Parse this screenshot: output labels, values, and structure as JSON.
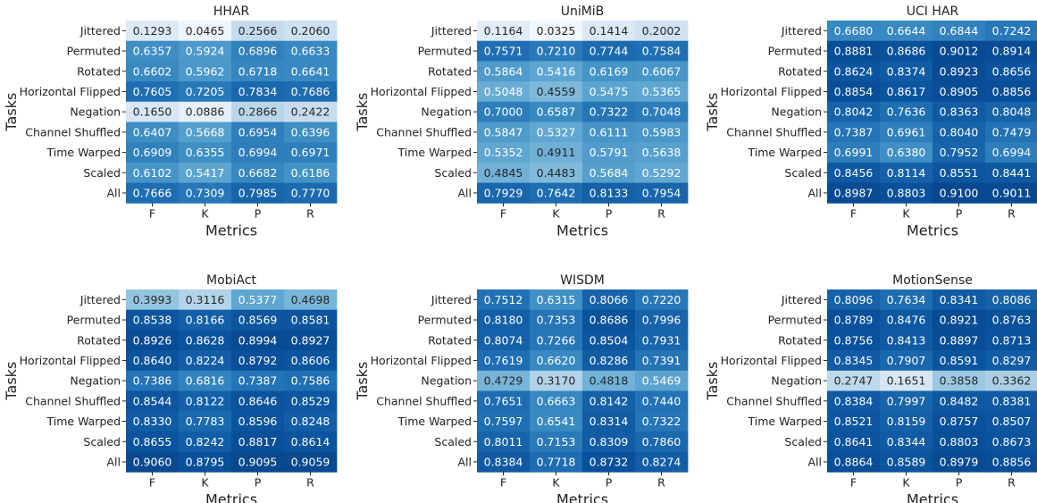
{
  "figure": {
    "colormap": "Blues",
    "color_scale_range": [
      0.0,
      1.0
    ],
    "text_color_dark": "#262626",
    "text_color_light": "#ffffff"
  },
  "chart_data": [
    {
      "type": "heatmap",
      "title": "HHAR",
      "xlabel": "Metrics",
      "ylabel": "Tasks",
      "x": [
        "F",
        "K",
        "P",
        "R"
      ],
      "y": [
        "Jittered",
        "Permuted",
        "Rotated",
        "Horizontal Flipped",
        "Negation",
        "Channel Shuffled",
        "Time Warped",
        "Scaled",
        "All"
      ],
      "values": [
        [
          0.1293,
          0.0465,
          0.2566,
          0.206
        ],
        [
          0.6357,
          0.5924,
          0.6896,
          0.6633
        ],
        [
          0.6602,
          0.5962,
          0.6718,
          0.6641
        ],
        [
          0.7605,
          0.7205,
          0.7834,
          0.7686
        ],
        [
          0.165,
          0.0886,
          0.2866,
          0.2422
        ],
        [
          0.6407,
          0.5668,
          0.6954,
          0.6396
        ],
        [
          0.6909,
          0.6355,
          0.6994,
          0.6971
        ],
        [
          0.6102,
          0.5417,
          0.6682,
          0.6186
        ],
        [
          0.7666,
          0.7309,
          0.7985,
          0.777
        ]
      ]
    },
    {
      "type": "heatmap",
      "title": "UniMiB",
      "xlabel": "Metrics",
      "ylabel": "Tasks",
      "x": [
        "F",
        "K",
        "P",
        "R"
      ],
      "y": [
        "Jittered",
        "Permuted",
        "Rotated",
        "Horizontal Flipped",
        "Negation",
        "Channel Shuffled",
        "Time Warped",
        "Scaled",
        "All"
      ],
      "values": [
        [
          0.1164,
          0.0325,
          0.1414,
          0.2002
        ],
        [
          0.7571,
          0.721,
          0.7744,
          0.7584
        ],
        [
          0.5864,
          0.5416,
          0.6169,
          0.6067
        ],
        [
          0.5048,
          0.4559,
          0.5475,
          0.5365
        ],
        [
          0.7,
          0.6587,
          0.7322,
          0.7048
        ],
        [
          0.5847,
          0.5327,
          0.6111,
          0.5983
        ],
        [
          0.5352,
          0.4911,
          0.5791,
          0.5638
        ],
        [
          0.4845,
          0.4483,
          0.5684,
          0.5292
        ],
        [
          0.7929,
          0.7642,
          0.8133,
          0.7954
        ]
      ]
    },
    {
      "type": "heatmap",
      "title": "UCI HAR",
      "xlabel": "Metrics",
      "ylabel": "Tasks",
      "x": [
        "F",
        "K",
        "P",
        "R"
      ],
      "y": [
        "Jittered",
        "Permuted",
        "Rotated",
        "Horizontal Flipped",
        "Negation",
        "Channel Shuffled",
        "Time Warped",
        "Scaled",
        "All"
      ],
      "values": [
        [
          0.668,
          0.6644,
          0.6844,
          0.7242
        ],
        [
          0.8881,
          0.8686,
          0.9012,
          0.8914
        ],
        [
          0.8624,
          0.8374,
          0.8923,
          0.8656
        ],
        [
          0.8854,
          0.8617,
          0.8905,
          0.8856
        ],
        [
          0.8042,
          0.7636,
          0.8363,
          0.8048
        ],
        [
          0.7387,
          0.6961,
          0.804,
          0.7479
        ],
        [
          0.6991,
          0.638,
          0.7952,
          0.6994
        ],
        [
          0.8456,
          0.8114,
          0.8551,
          0.8441
        ],
        [
          0.8987,
          0.8803,
          0.91,
          0.9011
        ]
      ]
    },
    {
      "type": "heatmap",
      "title": "MobiAct",
      "xlabel": "Metrics",
      "ylabel": "Tasks",
      "x": [
        "F",
        "K",
        "P",
        "R"
      ],
      "y": [
        "Jittered",
        "Permuted",
        "Rotated",
        "Horizontal Flipped",
        "Negation",
        "Channel Shuffled",
        "Time Warped",
        "Scaled",
        "All"
      ],
      "values": [
        [
          0.3993,
          0.3116,
          0.5377,
          0.4698
        ],
        [
          0.8538,
          0.8166,
          0.8569,
          0.8581
        ],
        [
          0.8926,
          0.8628,
          0.8994,
          0.8927
        ],
        [
          0.864,
          0.8224,
          0.8792,
          0.8606
        ],
        [
          0.7386,
          0.6816,
          0.7387,
          0.7586
        ],
        [
          0.8544,
          0.8122,
          0.8646,
          0.8529
        ],
        [
          0.833,
          0.7783,
          0.8596,
          0.8248
        ],
        [
          0.8655,
          0.8242,
          0.8817,
          0.8614
        ],
        [
          0.906,
          0.8795,
          0.9095,
          0.9059
        ]
      ]
    },
    {
      "type": "heatmap",
      "title": "WISDM",
      "xlabel": "Metrics",
      "ylabel": "Tasks",
      "x": [
        "F",
        "K",
        "P",
        "R"
      ],
      "y": [
        "Jittered",
        "Permuted",
        "Rotated",
        "Horizontal Flipped",
        "Negation",
        "Channel Shuffled",
        "Time Warped",
        "Scaled",
        "All"
      ],
      "values": [
        [
          0.7512,
          0.6315,
          0.8066,
          0.722
        ],
        [
          0.818,
          0.7353,
          0.8686,
          0.7996
        ],
        [
          0.8074,
          0.7266,
          0.8504,
          0.7931
        ],
        [
          0.7619,
          0.662,
          0.8286,
          0.7391
        ],
        [
          0.4729,
          0.317,
          0.4818,
          0.5469
        ],
        [
          0.7651,
          0.6663,
          0.8142,
          0.744
        ],
        [
          0.7597,
          0.6541,
          0.8314,
          0.7322
        ],
        [
          0.8011,
          0.7153,
          0.8309,
          0.786
        ],
        [
          0.8384,
          0.7718,
          0.8732,
          0.8274
        ]
      ]
    },
    {
      "type": "heatmap",
      "title": "MotionSense",
      "xlabel": "Metrics",
      "ylabel": "Tasks",
      "x": [
        "F",
        "K",
        "P",
        "R"
      ],
      "y": [
        "Jittered",
        "Permuted",
        "Rotated",
        "Horizontal Flipped",
        "Negation",
        "Channel Shuffled",
        "Time Warped",
        "Scaled",
        "All"
      ],
      "values": [
        [
          0.8096,
          0.7634,
          0.8341,
          0.8086
        ],
        [
          0.8789,
          0.8476,
          0.8921,
          0.8763
        ],
        [
          0.8756,
          0.8413,
          0.8897,
          0.8713
        ],
        [
          0.8345,
          0.7907,
          0.8591,
          0.8297
        ],
        [
          0.2747,
          0.1651,
          0.3858,
          0.3362
        ],
        [
          0.8384,
          0.7997,
          0.8482,
          0.8381
        ],
        [
          0.8521,
          0.8159,
          0.8757,
          0.8507
        ],
        [
          0.8641,
          0.8344,
          0.8803,
          0.8673
        ],
        [
          0.8864,
          0.8589,
          0.8979,
          0.8856
        ]
      ]
    }
  ]
}
